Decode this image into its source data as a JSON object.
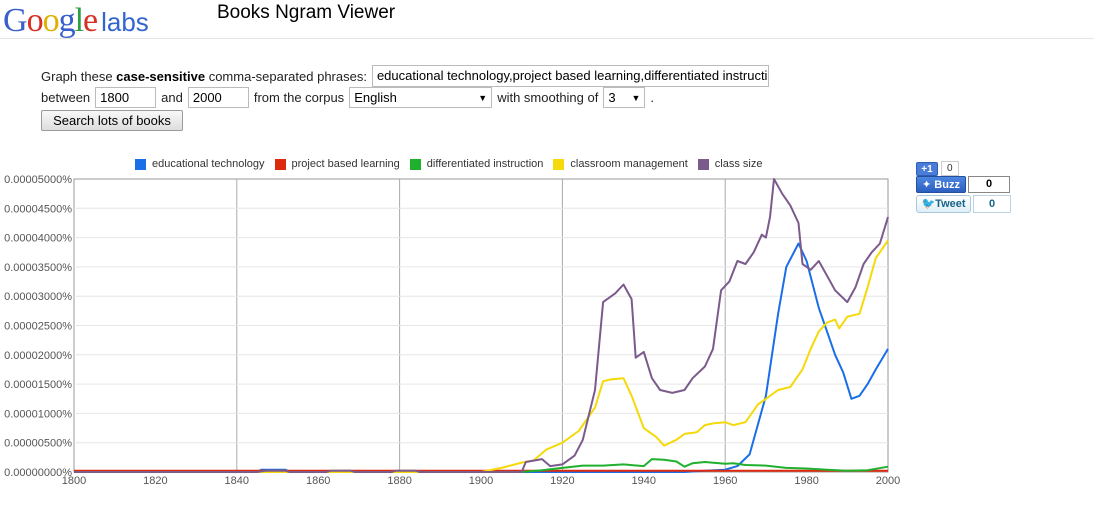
{
  "header": {
    "logo": {
      "letters": [
        "G",
        "o",
        "o",
        "g",
        "l",
        "e"
      ],
      "suffix": "labs"
    },
    "title": "Books Ngram Viewer"
  },
  "form": {
    "graph_prefix": "Graph these",
    "case_sensitive": "case-sensitive",
    "graph_suffix": "comma-separated phrases:",
    "phrases_value": "educational technology,project based learning,differentiated instructi",
    "between_label": "between",
    "start_year": "1800",
    "and_label": "and",
    "end_year": "2000",
    "corpus_label": "from the corpus",
    "corpus_value": "English",
    "smoothing_label": "with smoothing of",
    "smoothing_value": "3",
    "period": ".",
    "search_button": "Search lots of books"
  },
  "share": {
    "plus_one": "+1",
    "plus_one_count": "0",
    "buzz": "Buzz",
    "buzz_count": "0",
    "tweet": "Tweet",
    "tweet_count": "0"
  },
  "chart_data": {
    "type": "line",
    "title": "",
    "xlabel": "",
    "ylabel": "",
    "xlim": [
      1800,
      2000
    ],
    "ylim": [
      0,
      5e-05
    ],
    "grid": true,
    "legend_position": "top",
    "x_ticks": [
      "1800",
      "1820",
      "1840",
      "1860",
      "1880",
      "1900",
      "1920",
      "1940",
      "1960",
      "1980",
      "2000"
    ],
    "y_ticks": [
      "0.00000000%",
      "0.00000500%",
      "0.00001000%",
      "0.00001500%",
      "0.00002000%",
      "0.00002500%",
      "0.00003000%",
      "0.00003500%",
      "0.00004000%",
      "0.00004500%",
      "0.00005000%"
    ],
    "series": [
      {
        "name": "educational technology",
        "color": "#1a6ee8",
        "points": [
          [
            1800,
            0
          ],
          [
            1845,
            0
          ],
          [
            1846,
            4e-07
          ],
          [
            1852,
            4e-07
          ],
          [
            1853,
            0
          ],
          [
            1950,
            0
          ],
          [
            1955,
            2e-07
          ],
          [
            1960,
            4e-07
          ],
          [
            1963,
            1e-06
          ],
          [
            1966,
            3e-06
          ],
          [
            1970,
            1.3e-05
          ],
          [
            1973,
            2.7e-05
          ],
          [
            1975,
            3.5e-05
          ],
          [
            1978,
            3.9e-05
          ],
          [
            1980,
            3.6e-05
          ],
          [
            1983,
            2.8e-05
          ],
          [
            1985,
            2.4e-05
          ],
          [
            1987,
            2e-05
          ],
          [
            1989,
            1.7e-05
          ],
          [
            1991,
            1.25e-05
          ],
          [
            1993,
            1.3e-05
          ],
          [
            1995,
            1.5e-05
          ],
          [
            1997,
            1.75e-05
          ],
          [
            2000,
            2.1e-05
          ]
        ]
      },
      {
        "name": "project based learning",
        "color": "#dd2a0f",
        "points": [
          [
            1800,
            2e-07
          ],
          [
            2000,
            2e-07
          ]
        ]
      },
      {
        "name": "differentiated instruction",
        "color": "#1fb02e",
        "points": [
          [
            1800,
            0
          ],
          [
            1910,
            0
          ],
          [
            1915,
            3e-07
          ],
          [
            1920,
            7e-07
          ],
          [
            1925,
            1.1e-06
          ],
          [
            1930,
            1.1e-06
          ],
          [
            1935,
            1.3e-06
          ],
          [
            1940,
            1e-06
          ],
          [
            1942,
            2.2e-06
          ],
          [
            1945,
            2.1e-06
          ],
          [
            1948,
            1.8e-06
          ],
          [
            1950,
            9e-07
          ],
          [
            1952,
            1.5e-06
          ],
          [
            1955,
            1.7e-06
          ],
          [
            1960,
            1.4e-06
          ],
          [
            1962,
            1.5e-06
          ],
          [
            1965,
            1.2e-06
          ],
          [
            1970,
            1.1e-06
          ],
          [
            1975,
            7e-07
          ],
          [
            1980,
            6e-07
          ],
          [
            1985,
            4e-07
          ],
          [
            1990,
            2e-07
          ],
          [
            1995,
            3e-07
          ],
          [
            2000,
            9e-07
          ]
        ]
      },
      {
        "name": "classroom management",
        "color": "#f5d90a",
        "points": [
          [
            1800,
            0
          ],
          [
            1900,
            0
          ],
          [
            1905,
            7e-07
          ],
          [
            1910,
            1.6e-06
          ],
          [
            1913,
            2e-06
          ],
          [
            1916,
            3.8e-06
          ],
          [
            1920,
            5e-06
          ],
          [
            1924,
            7e-06
          ],
          [
            1928,
            1.1e-05
          ],
          [
            1930,
            1.55e-05
          ],
          [
            1932,
            1.58e-05
          ],
          [
            1935,
            1.6e-05
          ],
          [
            1937,
            1.3e-05
          ],
          [
            1940,
            7.5e-06
          ],
          [
            1943,
            6e-06
          ],
          [
            1945,
            4.5e-06
          ],
          [
            1948,
            5.5e-06
          ],
          [
            1950,
            6.5e-06
          ],
          [
            1953,
            6.8e-06
          ],
          [
            1955,
            8e-06
          ],
          [
            1957,
            8.3e-06
          ],
          [
            1960,
            8.5e-06
          ],
          [
            1962,
            8e-06
          ],
          [
            1965,
            8.5e-06
          ],
          [
            1968,
            1.15e-05
          ],
          [
            1970,
            1.25e-05
          ],
          [
            1973,
            1.4e-05
          ],
          [
            1976,
            1.45e-05
          ],
          [
            1979,
            1.75e-05
          ],
          [
            1981,
            2.1e-05
          ],
          [
            1983,
            2.4e-05
          ],
          [
            1985,
            2.55e-05
          ],
          [
            1987,
            2.6e-05
          ],
          [
            1988,
            2.45e-05
          ],
          [
            1990,
            2.65e-05
          ],
          [
            1993,
            2.7e-05
          ],
          [
            1995,
            3.15e-05
          ],
          [
            1997,
            3.65e-05
          ],
          [
            2000,
            3.95e-05
          ]
        ]
      },
      {
        "name": "class size",
        "color": "#7b5a8c",
        "points": [
          [
            1800,
            0
          ],
          [
            1845,
            0
          ],
          [
            1847,
            2e-07
          ],
          [
            1852,
            2e-07
          ],
          [
            1853,
            0
          ],
          [
            1862,
            0
          ],
          [
            1863,
            2e-07
          ],
          [
            1868,
            2e-07
          ],
          [
            1869,
            0
          ],
          [
            1878,
            0
          ],
          [
            1879,
            2e-07
          ],
          [
            1884,
            2e-07
          ],
          [
            1885,
            0
          ],
          [
            1910,
            0
          ],
          [
            1911,
            1.7e-06
          ],
          [
            1915,
            2.2e-06
          ],
          [
            1917,
            1e-06
          ],
          [
            1920,
            1.3e-06
          ],
          [
            1923,
            2.8e-06
          ],
          [
            1925,
            5.5e-06
          ],
          [
            1928,
            1.4e-05
          ],
          [
            1930,
            2.9e-05
          ],
          [
            1933,
            3.05e-05
          ],
          [
            1935,
            3.2e-05
          ],
          [
            1937,
            2.95e-05
          ],
          [
            1938,
            1.95e-05
          ],
          [
            1940,
            2.05e-05
          ],
          [
            1942,
            1.6e-05
          ],
          [
            1944,
            1.4e-05
          ],
          [
            1947,
            1.35e-05
          ],
          [
            1950,
            1.4e-05
          ],
          [
            1952,
            1.6e-05
          ],
          [
            1955,
            1.8e-05
          ],
          [
            1957,
            2.1e-05
          ],
          [
            1959,
            3.1e-05
          ],
          [
            1961,
            3.25e-05
          ],
          [
            1963,
            3.6e-05
          ],
          [
            1965,
            3.55e-05
          ],
          [
            1967,
            3.75e-05
          ],
          [
            1969,
            4.05e-05
          ],
          [
            1970,
            4e-05
          ],
          [
            1971,
            4.35e-05
          ],
          [
            1972,
            5e-05
          ],
          [
            1974,
            4.75e-05
          ],
          [
            1976,
            4.55e-05
          ],
          [
            1978,
            4.25e-05
          ],
          [
            1979,
            3.55e-05
          ],
          [
            1981,
            3.45e-05
          ],
          [
            1983,
            3.6e-05
          ],
          [
            1985,
            3.35e-05
          ],
          [
            1987,
            3.1e-05
          ],
          [
            1990,
            2.9e-05
          ],
          [
            1992,
            3.15e-05
          ],
          [
            1994,
            3.55e-05
          ],
          [
            1996,
            3.75e-05
          ],
          [
            1998,
            3.9e-05
          ],
          [
            2000,
            4.35e-05
          ]
        ]
      }
    ]
  }
}
